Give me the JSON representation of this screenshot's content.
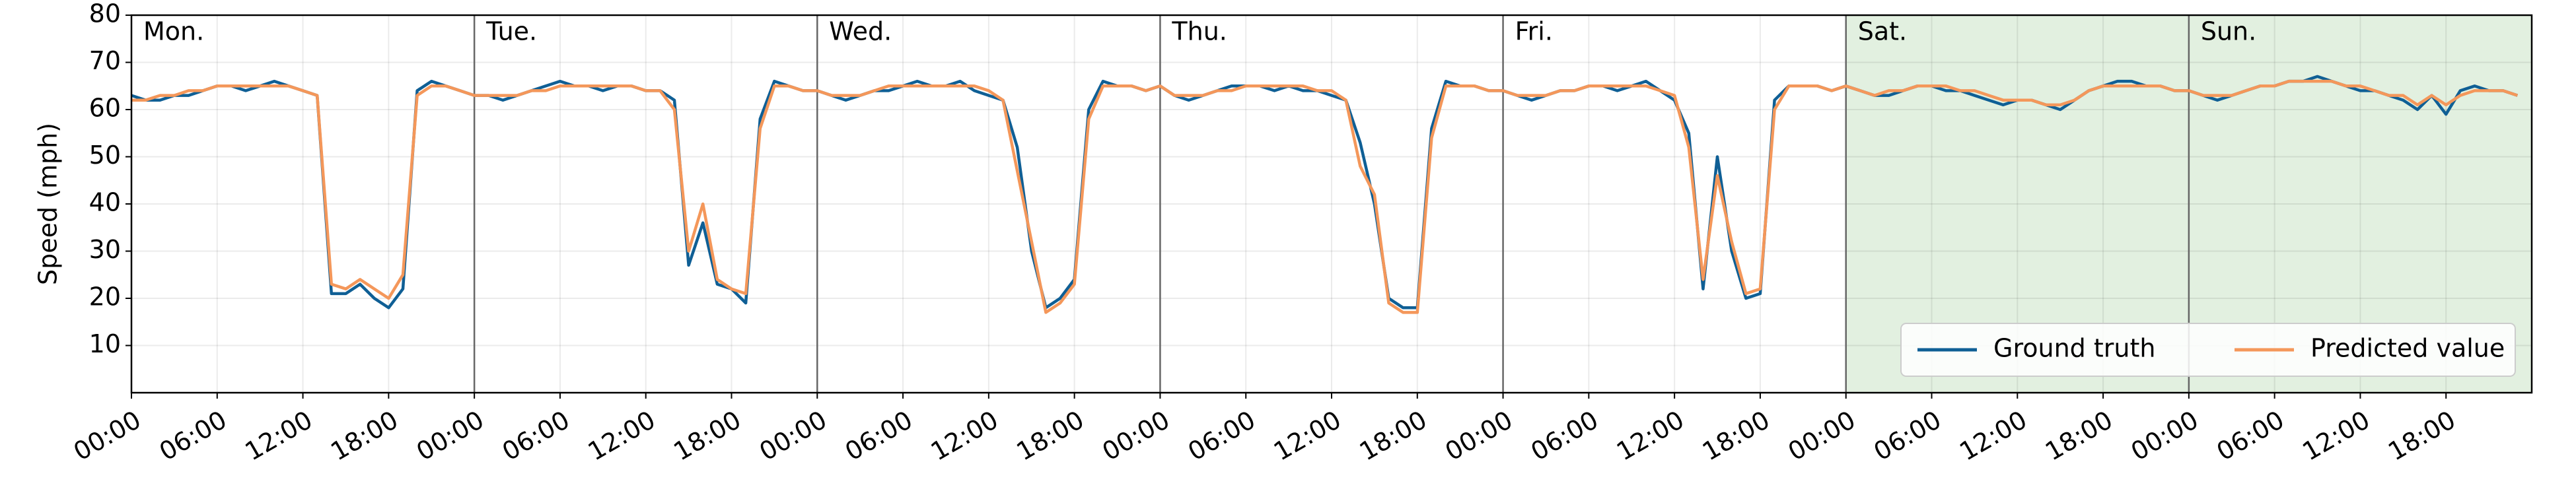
{
  "chart_data": {
    "type": "line",
    "ylabel": "Speed (mph)",
    "x": [
      0,
      1,
      2,
      3,
      4,
      5,
      6,
      7,
      8,
      9,
      10,
      11,
      12,
      13,
      14,
      15,
      16,
      17,
      18,
      19,
      20,
      21,
      22,
      23,
      24,
      25,
      26,
      27,
      28,
      29,
      30,
      31,
      32,
      33,
      34,
      35,
      36,
      37,
      38,
      39,
      40,
      41,
      42,
      43,
      44,
      45,
      46,
      47,
      48,
      49,
      50,
      51,
      52,
      53,
      54,
      55,
      56,
      57,
      58,
      59,
      60,
      61,
      62,
      63,
      64,
      65,
      66,
      67,
      68,
      69,
      70,
      71,
      72,
      73,
      74,
      75,
      76,
      77,
      78,
      79,
      80,
      81,
      82,
      83,
      84,
      85,
      86,
      87,
      88,
      89,
      90,
      91,
      92,
      93,
      94,
      95,
      96,
      97,
      98,
      99,
      100,
      101,
      102,
      103,
      104,
      105,
      106,
      107,
      108,
      109,
      110,
      111,
      112,
      113,
      114,
      115,
      116,
      117,
      118,
      119,
      120,
      121,
      122,
      123,
      124,
      125,
      126,
      127,
      128,
      129,
      130,
      131,
      132,
      133,
      134,
      135,
      136,
      137,
      138,
      139,
      140,
      141,
      142,
      143,
      144,
      145,
      146,
      147,
      148,
      149,
      150,
      151,
      152,
      153,
      154,
      155,
      156,
      157,
      158,
      159,
      160,
      161,
      162,
      163,
      164,
      165,
      166,
      167
    ],
    "series": [
      {
        "name": "Ground truth",
        "color": "#0f5f95",
        "values": [
          63,
          62,
          62,
          63,
          63,
          64,
          65,
          65,
          64,
          65,
          66,
          65,
          64,
          63,
          21,
          21,
          23,
          20,
          18,
          22,
          64,
          66,
          65,
          64,
          63,
          63,
          62,
          63,
          64,
          65,
          66,
          65,
          65,
          64,
          65,
          65,
          64,
          64,
          62,
          27,
          36,
          23,
          22,
          19,
          58,
          66,
          65,
          64,
          64,
          63,
          62,
          63,
          64,
          64,
          65,
          66,
          65,
          65,
          66,
          64,
          63,
          62,
          52,
          30,
          18,
          20,
          24,
          60,
          66,
          65,
          65,
          64,
          65,
          63,
          62,
          63,
          64,
          65,
          65,
          65,
          64,
          65,
          64,
          64,
          63,
          62,
          53,
          40,
          20,
          18,
          18,
          56,
          66,
          65,
          65,
          64,
          64,
          63,
          62,
          63,
          64,
          64,
          65,
          65,
          64,
          65,
          66,
          64,
          62,
          55,
          22,
          50,
          30,
          20,
          21,
          62,
          65,
          65,
          65,
          64,
          65,
          64,
          63,
          63,
          64,
          65,
          65,
          64,
          64,
          63,
          62,
          61,
          62,
          62,
          61,
          60,
          62,
          64,
          65,
          66,
          66,
          65,
          65,
          64,
          64,
          63,
          62,
          63,
          64,
          65,
          65,
          66,
          66,
          67,
          66,
          65,
          64,
          64,
          63,
          62,
          60,
          63,
          59,
          64,
          65,
          64,
          64,
          63
        ]
      },
      {
        "name": "Predicted value",
        "color": "#f4975a",
        "values": [
          62,
          62,
          63,
          63,
          64,
          64,
          65,
          65,
          65,
          65,
          65,
          65,
          64,
          63,
          23,
          22,
          24,
          22,
          20,
          25,
          63,
          65,
          65,
          64,
          63,
          63,
          63,
          63,
          64,
          64,
          65,
          65,
          65,
          65,
          65,
          65,
          64,
          64,
          60,
          30,
          40,
          24,
          22,
          21,
          56,
          65,
          65,
          64,
          64,
          63,
          63,
          63,
          64,
          65,
          65,
          65,
          65,
          65,
          65,
          65,
          64,
          62,
          47,
          32,
          17,
          19,
          23,
          58,
          65,
          65,
          65,
          64,
          65,
          63,
          63,
          63,
          64,
          64,
          65,
          65,
          65,
          65,
          65,
          64,
          64,
          62,
          48,
          42,
          19,
          17,
          17,
          54,
          65,
          65,
          65,
          64,
          64,
          63,
          63,
          63,
          64,
          64,
          65,
          65,
          65,
          65,
          65,
          64,
          63,
          52,
          24,
          46,
          32,
          21,
          22,
          60,
          65,
          65,
          65,
          64,
          65,
          64,
          63,
          64,
          64,
          65,
          65,
          65,
          64,
          64,
          63,
          62,
          62,
          62,
          61,
          61,
          62,
          64,
          65,
          65,
          65,
          65,
          65,
          64,
          64,
          63,
          63,
          63,
          64,
          65,
          65,
          66,
          66,
          66,
          66,
          65,
          65,
          64,
          63,
          63,
          61,
          63,
          61,
          63,
          64,
          64,
          64,
          63
        ]
      }
    ],
    "xlim": [
      0,
      168
    ],
    "ylim": [
      0,
      80
    ],
    "yticks": [
      10,
      20,
      30,
      40,
      50,
      60,
      70,
      80
    ],
    "xticks": [
      {
        "value": 0,
        "label": "00:00"
      },
      {
        "value": 6,
        "label": "06:00"
      },
      {
        "value": 12,
        "label": "12:00"
      },
      {
        "value": 18,
        "label": "18:00"
      },
      {
        "value": 24,
        "label": "00:00"
      },
      {
        "value": 30,
        "label": "06:00"
      },
      {
        "value": 36,
        "label": "12:00"
      },
      {
        "value": 42,
        "label": "18:00"
      },
      {
        "value": 48,
        "label": "00:00"
      },
      {
        "value": 54,
        "label": "06:00"
      },
      {
        "value": 60,
        "label": "12:00"
      },
      {
        "value": 66,
        "label": "18:00"
      },
      {
        "value": 72,
        "label": "00:00"
      },
      {
        "value": 78,
        "label": "06:00"
      },
      {
        "value": 84,
        "label": "12:00"
      },
      {
        "value": 90,
        "label": "18:00"
      },
      {
        "value": 96,
        "label": "00:00"
      },
      {
        "value": 102,
        "label": "06:00"
      },
      {
        "value": 108,
        "label": "12:00"
      },
      {
        "value": 114,
        "label": "18:00"
      },
      {
        "value": 120,
        "label": "00:00"
      },
      {
        "value": 126,
        "label": "06:00"
      },
      {
        "value": 132,
        "label": "12:00"
      },
      {
        "value": 138,
        "label": "18:00"
      },
      {
        "value": 144,
        "label": "00:00"
      },
      {
        "value": 150,
        "label": "06:00"
      },
      {
        "value": 156,
        "label": "12:00"
      },
      {
        "value": 162,
        "label": "18:00"
      }
    ],
    "days": [
      {
        "label": "Mon.",
        "x": 0
      },
      {
        "label": "Tue.",
        "x": 24
      },
      {
        "label": "Wed.",
        "x": 48
      },
      {
        "label": "Thu.",
        "x": 72
      },
      {
        "label": "Fri.",
        "x": 96
      },
      {
        "label": "Sat.",
        "x": 120
      },
      {
        "label": "Sun.",
        "x": 144
      }
    ],
    "shaded_xrange": [
      120,
      168
    ],
    "shade_color": "#e2f0e0",
    "grid": true,
    "legend": "lower right"
  }
}
